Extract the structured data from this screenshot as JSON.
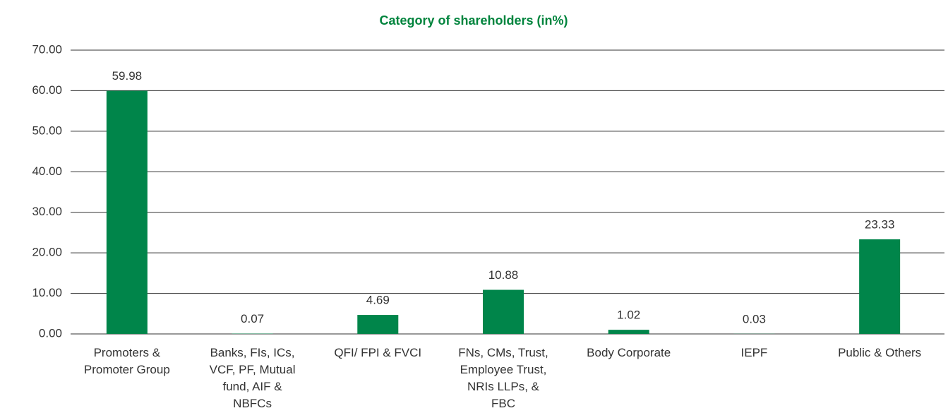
{
  "chart_data": {
    "type": "bar",
    "title": "Category of shareholders (in%)",
    "categories": [
      "Promoters & Promoter Group",
      "Banks, FIs, ICs, VCF, PF, Mutual fund, AIF & NBFCs",
      "QFI/ FPI & FVCI",
      "FNs, CMs, Trust, Employee Trust, NRIs LLPs, & FBC",
      "Body Corporate",
      "IEPF",
      "Public & Others"
    ],
    "values": [
      59.98,
      0.07,
      4.69,
      10.88,
      1.02,
      0.03,
      23.33
    ],
    "color": "#00854a",
    "ylim": [
      0,
      70
    ],
    "yticks": [
      {
        "value": 0,
        "label": "0.00"
      },
      {
        "value": 10,
        "label": "10.00"
      },
      {
        "value": 20,
        "label": "20.00"
      },
      {
        "value": 30,
        "label": "30.00"
      },
      {
        "value": 40,
        "label": "40.00"
      },
      {
        "value": 50,
        "label": "50.00"
      },
      {
        "value": 60,
        "label": "60.00"
      },
      {
        "value": 70,
        "label": "70.00"
      }
    ],
    "grid": true
  }
}
